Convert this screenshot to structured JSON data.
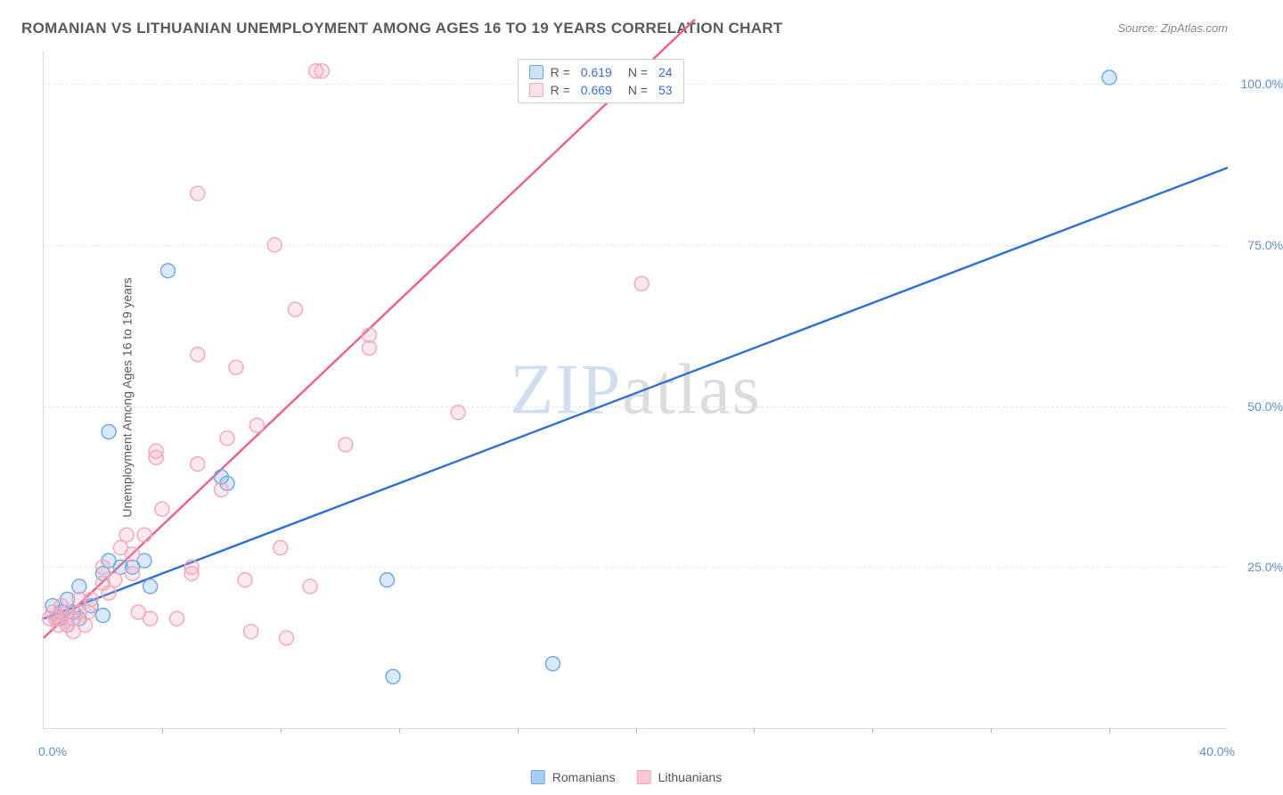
{
  "title": "ROMANIAN VS LITHUANIAN UNEMPLOYMENT AMONG AGES 16 TO 19 YEARS CORRELATION CHART",
  "source": "Source: ZipAtlas.com",
  "ylabel": "Unemployment Among Ages 16 to 19 years",
  "watermark": {
    "zip": "ZIP",
    "atlas": "atlas"
  },
  "chart": {
    "type": "scatter",
    "xlim": [
      0,
      40
    ],
    "ylim": [
      0,
      105
    ],
    "x_ticks": [
      0,
      4,
      8,
      12,
      16,
      20,
      24,
      28,
      32,
      36,
      40
    ],
    "x_tick_labels": {
      "0": "0.0%",
      "40": "40.0%"
    },
    "y_grid": [
      25,
      50,
      75,
      100
    ],
    "y_tick_labels": {
      "25": "25.0%",
      "50": "50.0%",
      "75": "75.0%",
      "100": "100.0%"
    },
    "background": "#ffffff",
    "grid_color": "#e6e6e6",
    "axis_color": "#dcdcdc",
    "label_color": "#5a8fd6",
    "marker_radius": 8,
    "marker_stroke_width": 1.4,
    "marker_fill_opacity": 0.25,
    "line_width": 2.4,
    "series": [
      {
        "name": "Romanians",
        "color": "#6aa7e8",
        "line_color": "#2f6fd6",
        "R": "0.619",
        "N": "24",
        "trend": {
          "x1": 0,
          "y1": 17,
          "x2": 40,
          "y2": 87
        },
        "points": [
          [
            0.3,
            19
          ],
          [
            0.5,
            17
          ],
          [
            0.6,
            18
          ],
          [
            0.8,
            20
          ],
          [
            0.8,
            16
          ],
          [
            1.0,
            18
          ],
          [
            1.2,
            17
          ],
          [
            1.2,
            22
          ],
          [
            1.6,
            19
          ],
          [
            2.0,
            17.5
          ],
          [
            2.0,
            24
          ],
          [
            2.2,
            26
          ],
          [
            2.6,
            25
          ],
          [
            2.2,
            46
          ],
          [
            3.0,
            25
          ],
          [
            3.4,
            26
          ],
          [
            3.6,
            22
          ],
          [
            4.2,
            71
          ],
          [
            6.0,
            39
          ],
          [
            6.2,
            38
          ],
          [
            11.6,
            23
          ],
          [
            11.8,
            8
          ],
          [
            17.2,
            10
          ],
          [
            36.0,
            101
          ]
        ]
      },
      {
        "name": "Lithuanians",
        "color": "#f5a6b8",
        "line_color": "#ef5e87",
        "R": "0.669",
        "N": "53",
        "trend": {
          "x1": 0,
          "y1": 14,
          "x2": 22,
          "y2": 110
        },
        "points": [
          [
            0.2,
            17
          ],
          [
            0.3,
            18
          ],
          [
            0.4,
            17
          ],
          [
            0.5,
            16
          ],
          [
            0.6,
            17
          ],
          [
            0.6,
            19
          ],
          [
            0.8,
            16
          ],
          [
            0.8,
            18
          ],
          [
            1.0,
            15
          ],
          [
            1.0,
            17
          ],
          [
            1.2,
            18
          ],
          [
            1.2,
            20
          ],
          [
            1.4,
            16
          ],
          [
            1.5,
            18
          ],
          [
            1.6,
            20
          ],
          [
            2.0,
            22.5
          ],
          [
            2.0,
            25
          ],
          [
            2.2,
            21
          ],
          [
            2.4,
            23
          ],
          [
            2.6,
            28
          ],
          [
            2.8,
            30
          ],
          [
            3.0,
            24
          ],
          [
            3.0,
            27
          ],
          [
            3.2,
            18
          ],
          [
            3.4,
            30
          ],
          [
            3.6,
            17
          ],
          [
            3.8,
            42
          ],
          [
            3.8,
            43
          ],
          [
            4.0,
            34
          ],
          [
            4.5,
            17
          ],
          [
            5.0,
            25
          ],
          [
            5.0,
            24
          ],
          [
            5.2,
            41
          ],
          [
            5.2,
            83
          ],
          [
            5.2,
            58
          ],
          [
            6.0,
            37
          ],
          [
            6.2,
            45
          ],
          [
            6.5,
            56
          ],
          [
            6.8,
            23
          ],
          [
            7.0,
            15
          ],
          [
            7.2,
            47
          ],
          [
            7.8,
            75
          ],
          [
            8.0,
            28
          ],
          [
            8.2,
            14
          ],
          [
            8.5,
            65
          ],
          [
            9.0,
            22
          ],
          [
            9.2,
            102
          ],
          [
            9.4,
            102
          ],
          [
            10.2,
            44
          ],
          [
            11.0,
            59
          ],
          [
            11.0,
            61
          ],
          [
            14.0,
            49
          ],
          [
            20.2,
            69
          ]
        ]
      }
    ]
  },
  "legend_bottom": [
    {
      "label": "Romanians",
      "color": "#a7cdf2",
      "border": "#6aa7e8"
    },
    {
      "label": "Lithuanians",
      "color": "#f8c9d4",
      "border": "#f5a6b8"
    }
  ],
  "legend_stats_pos": {
    "left_pct": 40,
    "top_pct": 1
  }
}
